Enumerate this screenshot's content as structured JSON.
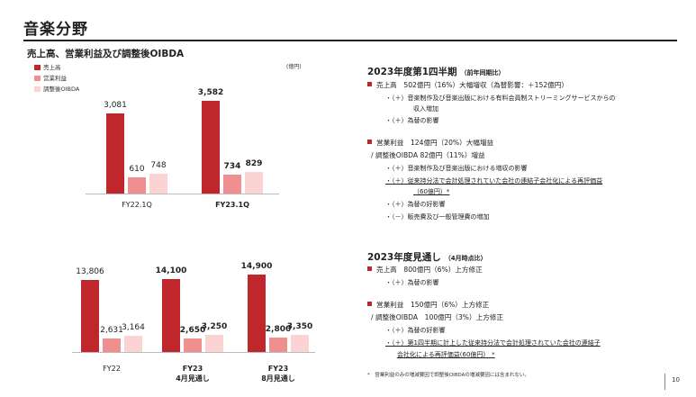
{
  "page_title": "音楽分野",
  "chart_title": "売上高、営業利益及び調整後OIBDA",
  "unit": "(億円)",
  "legend": [
    {
      "label": "売上高",
      "color": "#c0272d"
    },
    {
      "label": "営業利益",
      "color": "#ef8f8f"
    },
    {
      "label": "調整後OIBDA",
      "color": "#fbd3d3"
    }
  ],
  "chart_data": [
    {
      "type": "bar",
      "categories": [
        "FY22.1Q",
        "FY23.1Q"
      ],
      "series": [
        {
          "name": "売上高",
          "values": [
            3081,
            3582
          ]
        },
        {
          "name": "営業利益",
          "values": [
            610,
            734
          ]
        },
        {
          "name": "調整後OIBDA",
          "values": [
            748,
            829
          ]
        }
      ],
      "value_labels": [
        [
          "3,081",
          "610",
          "748"
        ],
        [
          "3,582",
          "734",
          "829"
        ]
      ],
      "category_labels": [
        "FY22.1Q",
        "FY23.1Q"
      ]
    },
    {
      "type": "bar",
      "categories": [
        "FY22",
        "FY23 4月見通し",
        "FY23 8月見通し"
      ],
      "series": [
        {
          "name": "売上高",
          "values": [
            13806,
            14100,
            14900
          ]
        },
        {
          "name": "営業利益",
          "values": [
            2631,
            2650,
            2800
          ]
        },
        {
          "name": "調整後OIBDA",
          "values": [
            3164,
            3250,
            3350
          ]
        }
      ],
      "value_labels": [
        [
          "13,806",
          "2,631",
          "3,164"
        ],
        [
          "14,100",
          "2,650",
          "3,250"
        ],
        [
          "14,900",
          "2,800",
          "3,350"
        ]
      ],
      "category_labels": [
        "FY22",
        "FY23\n4月見通し",
        "FY23\n8月見通し"
      ]
    }
  ],
  "q1": {
    "heading": "2023年度第1四半期",
    "heading_note": "（前年同期比）",
    "sales_line": "売上高　502億円（16%）大幅増収（為替影響：＋152億円）",
    "sales_sub1a": "・（＋）音楽制作及び音楽出版における有料会員制ストリーミングサービスからの",
    "sales_sub1b": "収入増加",
    "sales_sub2": "・（＋）為替の影響",
    "op_line": "営業利益　124億円（20%）大幅増益",
    "op_line2": "/ 調整後OIBDA 82億円（11%）増益",
    "op_sub1": "・（＋）音楽制作及び音楽出版における増収の影響",
    "op_sub2a": "・（＋）従来持分法で会計処理されていた会社の連結子会社化による再評価益",
    "op_sub2b": "（60億円）*",
    "op_sub3": "・（＋）為替の好影響",
    "op_sub4": "・（－）販売費及び一般管理費の増加"
  },
  "fy": {
    "heading": "2023年度見通し",
    "heading_note": "（4月時点比）",
    "sales_line": "売上高　800億円（6%）上方修正",
    "sales_sub1": "・（＋）為替の影響",
    "op_line": "営業利益　150億円（6%）上方修正",
    "op_line2": "/ 調整後OIBDA　100億円（3%）上方修正",
    "op_sub1": "・（＋）為替の好影響",
    "op_sub2a": "・（＋）第1四半期に計上した従来持分法で会計処理されていた会社の連結子",
    "op_sub2b": "会社化による再評価益(60億円)　*"
  },
  "footnote": "*　営業利益のみの増減要因で調整後OIBDAの増減要因には含まれない。",
  "page_number": "10"
}
